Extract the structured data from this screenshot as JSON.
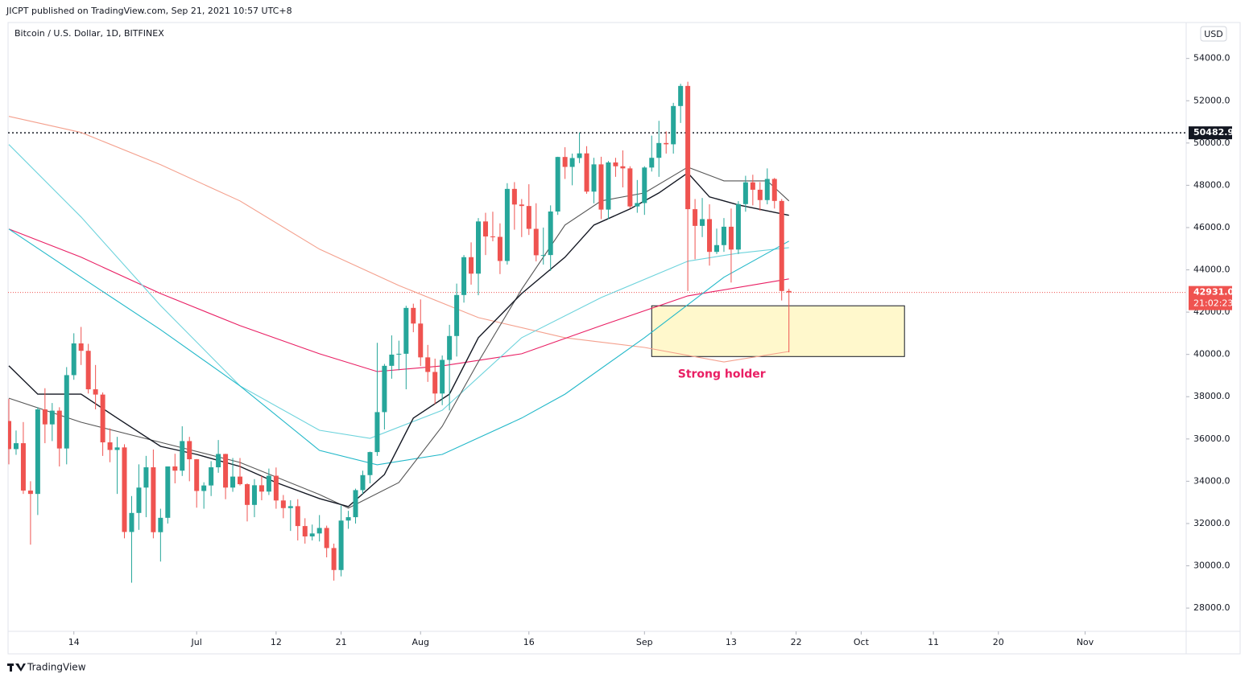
{
  "header": {
    "published": "JICPT published on TradingView.com, Sep 21, 2021 10:57 UTC+8"
  },
  "footer": {
    "brand": "TradingView"
  },
  "chart_data": {
    "type": "candlestick",
    "title": "Bitcoin / U.S. Dollar, 1D, BITFINEX",
    "currency": "USD",
    "up_color": "#26a69a",
    "down_color": "#ef5350",
    "x": [
      "2021-06-05",
      "2021-06-06",
      "2021-06-07",
      "2021-06-08",
      "2021-06-09",
      "2021-06-10",
      "2021-06-11",
      "2021-06-12",
      "2021-06-13",
      "2021-06-14",
      "2021-06-15",
      "2021-06-16",
      "2021-06-17",
      "2021-06-18",
      "2021-06-19",
      "2021-06-20",
      "2021-06-21",
      "2021-06-22",
      "2021-06-23",
      "2021-06-24",
      "2021-06-25",
      "2021-06-26",
      "2021-06-27",
      "2021-06-28",
      "2021-06-29",
      "2021-06-30",
      "2021-07-01",
      "2021-07-02",
      "2021-07-03",
      "2021-07-04",
      "2021-07-05",
      "2021-07-06",
      "2021-07-07",
      "2021-07-08",
      "2021-07-09",
      "2021-07-10",
      "2021-07-11",
      "2021-07-12",
      "2021-07-13",
      "2021-07-14",
      "2021-07-15",
      "2021-07-16",
      "2021-07-17",
      "2021-07-18",
      "2021-07-19",
      "2021-07-20",
      "2021-07-21",
      "2021-07-22",
      "2021-07-23",
      "2021-07-24",
      "2021-07-25",
      "2021-07-26",
      "2021-07-27",
      "2021-07-28",
      "2021-07-29",
      "2021-07-30",
      "2021-07-31",
      "2021-08-01",
      "2021-08-02",
      "2021-08-03",
      "2021-08-04",
      "2021-08-05",
      "2021-08-06",
      "2021-08-07",
      "2021-08-08",
      "2021-08-09",
      "2021-08-10",
      "2021-08-11",
      "2021-08-12",
      "2021-08-13",
      "2021-08-14",
      "2021-08-15",
      "2021-08-16",
      "2021-08-17",
      "2021-08-18",
      "2021-08-19",
      "2021-08-20",
      "2021-08-21",
      "2021-08-22",
      "2021-08-23",
      "2021-08-24",
      "2021-08-25",
      "2021-08-26",
      "2021-08-27",
      "2021-08-28",
      "2021-08-29",
      "2021-08-30",
      "2021-08-31",
      "2021-09-01",
      "2021-09-02",
      "2021-09-03",
      "2021-09-04",
      "2021-09-05",
      "2021-09-06",
      "2021-09-07",
      "2021-09-08",
      "2021-09-09",
      "2021-09-10",
      "2021-09-11",
      "2021-09-12",
      "2021-09-13",
      "2021-09-14",
      "2021-09-15",
      "2021-09-16",
      "2021-09-17",
      "2021-09-18",
      "2021-09-19",
      "2021-09-20",
      "2021-09-21"
    ],
    "open": [
      36850,
      35520,
      35800,
      33560,
      33400,
      37400,
      36690,
      37340,
      35550,
      39020,
      40520,
      40170,
      38350,
      38100,
      35840,
      35480,
      35600,
      31600,
      32500,
      33700,
      34660,
      31590,
      32270,
      34700,
      34500,
      35900,
      35040,
      33540,
      33800,
      34660,
      35290,
      33700,
      34220,
      33860,
      32880,
      33810,
      33510,
      34260,
      33090,
      32730,
      32820,
      31880,
      31390,
      31530,
      31790,
      30840,
      29800,
      32140,
      32300,
      33580,
      34290,
      35380,
      37270,
      39460,
      39990,
      40030,
      42200,
      41460,
      39860,
      39170,
      38150,
      39740,
      40870,
      42810,
      44600,
      43820,
      46290,
      45580,
      45560,
      44420,
      47830,
      47090,
      47020,
      45940,
      44690,
      44700,
      46760,
      49340,
      48870,
      49290,
      49510,
      47700,
      48990,
      46850,
      49080,
      48900,
      48800,
      47000,
      47160,
      48840,
      49300,
      50000,
      49940,
      51750,
      52700,
      46870,
      46080,
      46400,
      44850,
      45170,
      46040,
      44960,
      47110,
      48140,
      47790,
      47300,
      48300,
      47260,
      43000
    ],
    "high": [
      37900,
      36400,
      36800,
      34000,
      37500,
      38400,
      37700,
      37500,
      39400,
      41000,
      41300,
      40500,
      39500,
      38200,
      36500,
      36100,
      35750,
      33300,
      34800,
      35200,
      35500,
      32700,
      34700,
      35300,
      36600,
      36100,
      35050,
      33950,
      34950,
      35950,
      35300,
      35100,
      35100,
      33900,
      34100,
      34250,
      34600,
      34650,
      33350,
      33100,
      33150,
      32250,
      31950,
      32400,
      31900,
      31050,
      32850,
      32600,
      33650,
      34500,
      35400,
      40550,
      39550,
      40900,
      40650,
      42300,
      42400,
      42600,
      40450,
      39800,
      39950,
      41400,
      43350,
      44700,
      45300,
      46450,
      46700,
      46750,
      46200,
      48100,
      48150,
      47350,
      48050,
      47150,
      46000,
      47050,
      49350,
      49800,
      49500,
      50500,
      49850,
      49300,
      49350,
      49150,
      49300,
      49650,
      48900,
      48250,
      48900,
      50350,
      51050,
      50550,
      51900,
      52800,
      52900,
      47350,
      47400,
      47100,
      45950,
      46450,
      46900,
      47250,
      48450,
      48500,
      48150,
      48800,
      48350,
      47350,
      43100
    ],
    "low": [
      34800,
      35250,
      33400,
      31000,
      32400,
      35800,
      35900,
      34700,
      34800,
      38800,
      39500,
      38150,
      37400,
      35200,
      34900,
      33400,
      31300,
      29200,
      31700,
      32300,
      31300,
      30200,
      32000,
      33900,
      34250,
      34000,
      32750,
      32700,
      33300,
      34400,
      33150,
      33500,
      33800,
      32100,
      32300,
      33100,
      33350,
      32700,
      32250,
      31650,
      31200,
      31050,
      31200,
      31150,
      30400,
      29300,
      29500,
      31750,
      32000,
      33400,
      33900,
      35200,
      36450,
      38850,
      39250,
      38350,
      41050,
      39450,
      38700,
      37650,
      37600,
      37350,
      39900,
      42450,
      43300,
      42800,
      44700,
      45350,
      43800,
      44250,
      45900,
      45550,
      45650,
      44400,
      44250,
      43950,
      46600,
      48300,
      48000,
      49050,
      47600,
      47150,
      46400,
      46400,
      48400,
      47900,
      46900,
      46700,
      46600,
      48650,
      48400,
      49500,
      49500,
      50950,
      43000,
      44500,
      45550,
      44200,
      44750,
      44850,
      43400,
      44750,
      46750,
      47050,
      46800,
      47100,
      46900,
      42550,
      40100
    ],
    "close": [
      35520,
      35800,
      33560,
      33400,
      37400,
      36690,
      37340,
      35550,
      39020,
      40520,
      40170,
      38350,
      38100,
      35840,
      35480,
      35600,
      31600,
      32500,
      33700,
      34660,
      31590,
      32270,
      34700,
      34500,
      35900,
      35040,
      33540,
      33800,
      34660,
      35290,
      33700,
      34220,
      33860,
      32880,
      33810,
      33510,
      34260,
      33090,
      32730,
      32820,
      31880,
      31390,
      31530,
      31790,
      30840,
      29800,
      32140,
      32300,
      33580,
      34290,
      35380,
      37270,
      39460,
      39990,
      40030,
      42200,
      41460,
      39860,
      39170,
      38150,
      39740,
      40870,
      42810,
      44600,
      43820,
      46290,
      45580,
      45560,
      44420,
      47830,
      47090,
      47020,
      45940,
      44690,
      44700,
      46760,
      49340,
      48870,
      49290,
      49510,
      47700,
      48990,
      46850,
      49080,
      48900,
      48800,
      47000,
      47160,
      48840,
      49300,
      50000,
      49940,
      51750,
      52700,
      46870,
      46080,
      46400,
      44850,
      45170,
      46040,
      44960,
      47110,
      48140,
      47790,
      47300,
      48300,
      47260,
      43000,
      42931
    ],
    "lines": [
      {
        "color": "#f4a08d",
        "x": [
          "2021-06-05",
          "2021-06-15",
          "2021-06-26",
          "2021-07-07",
          "2021-07-18",
          "2021-07-29",
          "2021-08-09",
          "2021-08-21",
          "2021-09-01",
          "2021-09-12",
          "2021-09-21"
        ],
        "values": [
          51260,
          50500,
          48975,
          47260,
          44980,
          43260,
          41740,
          40790,
          40330,
          39640,
          40140
        ]
      },
      {
        "color": "#e91e63",
        "x": [
          "2021-06-05",
          "2021-06-15",
          "2021-06-26",
          "2021-07-07",
          "2021-07-18",
          "2021-07-26",
          "2021-08-04",
          "2021-08-15",
          "2021-08-26",
          "2021-09-07",
          "2021-09-21"
        ],
        "values": [
          45930,
          44600,
          42880,
          41360,
          40030,
          39190,
          39460,
          40030,
          41360,
          42770,
          43570
        ]
      },
      {
        "color": "#6dd3dc",
        "x": [
          "2021-06-05",
          "2021-06-15",
          "2021-06-26",
          "2021-07-07",
          "2021-07-18",
          "2021-07-25",
          "2021-08-04",
          "2021-08-15",
          "2021-08-26",
          "2021-09-07",
          "2021-09-14",
          "2021-09-21"
        ],
        "values": [
          49930,
          46500,
          42310,
          38510,
          36410,
          36030,
          37360,
          40790,
          42690,
          44410,
          44790,
          45050
        ]
      },
      {
        "color": "#22b8c9",
        "x": [
          "2021-06-05",
          "2021-06-15",
          "2021-06-26",
          "2021-07-07",
          "2021-07-18",
          "2021-07-26",
          "2021-08-04",
          "2021-08-15",
          "2021-08-21",
          "2021-09-01",
          "2021-09-12",
          "2021-09-21"
        ],
        "values": [
          45930,
          43650,
          41170,
          38510,
          35460,
          34780,
          35270,
          36990,
          38120,
          40790,
          43650,
          45360
        ]
      },
      {
        "color": "#555555",
        "x": [
          "2021-06-05",
          "2021-06-15",
          "2021-06-26",
          "2021-07-07",
          "2021-07-18",
          "2021-07-22",
          "2021-07-29",
          "2021-08-04",
          "2021-08-09",
          "2021-08-15",
          "2021-08-21",
          "2021-08-26",
          "2021-09-01",
          "2021-09-07",
          "2021-09-12",
          "2021-09-18",
          "2021-09-21"
        ],
        "values": [
          37930,
          36790,
          35840,
          34890,
          33370,
          32730,
          33940,
          36600,
          39650,
          43080,
          46120,
          47260,
          47640,
          48860,
          48210,
          48210,
          47260
        ]
      },
      {
        "color": "#131722",
        "x": [
          "2021-06-05",
          "2021-06-09",
          "2021-06-15",
          "2021-06-20",
          "2021-06-26",
          "2021-07-01",
          "2021-07-07",
          "2021-07-12",
          "2021-07-18",
          "2021-07-22",
          "2021-07-27",
          "2021-07-31",
          "2021-08-05",
          "2021-08-09",
          "2021-08-15",
          "2021-08-21",
          "2021-08-25",
          "2021-08-30",
          "2021-09-03",
          "2021-09-07",
          "2021-09-10",
          "2021-09-14",
          "2021-09-21"
        ],
        "values": [
          39460,
          38120,
          38120,
          36990,
          35650,
          35270,
          34700,
          33940,
          33180,
          32800,
          34320,
          36990,
          38120,
          40790,
          42880,
          44600,
          46120,
          46880,
          47640,
          48590,
          47450,
          47070,
          46580
        ]
      }
    ],
    "xlim": [
      "2021-06-05",
      "2021-11-15"
    ],
    "xticks": [
      {
        "value": "2021-06-14",
        "label": "14"
      },
      {
        "value": "2021-07-01",
        "label": "Jul"
      },
      {
        "value": "2021-07-12",
        "label": "12"
      },
      {
        "value": "2021-07-21",
        "label": "21"
      },
      {
        "value": "2021-08-01",
        "label": "Aug"
      },
      {
        "value": "2021-08-16",
        "label": "16"
      },
      {
        "value": "2021-09-01",
        "label": "Sep"
      },
      {
        "value": "2021-09-13",
        "label": "13"
      },
      {
        "value": "2021-09-22",
        "label": "22"
      },
      {
        "value": "2021-10-01",
        "label": "Oct"
      },
      {
        "value": "2021-10-11",
        "label": "11"
      },
      {
        "value": "2021-10-20",
        "label": "20"
      },
      {
        "value": "2021-11-01",
        "label": "Nov"
      }
    ],
    "ylim": [
      26900,
      55700
    ],
    "yticks": [
      {
        "value": 28000,
        "label": "28000.0"
      },
      {
        "value": 30000,
        "label": "30000.0"
      },
      {
        "value": 32000,
        "label": "32000.0"
      },
      {
        "value": 34000,
        "label": "34000.0"
      },
      {
        "value": 36000,
        "label": "36000.0"
      },
      {
        "value": 38000,
        "label": "38000.0"
      },
      {
        "value": 40000,
        "label": "40000.0"
      },
      {
        "value": 42000,
        "label": "42000.0"
      },
      {
        "value": 44000,
        "label": "44000.0"
      },
      {
        "value": 46000,
        "label": "46000.0"
      },
      {
        "value": 48000,
        "label": "48000.0"
      },
      {
        "value": 50000,
        "label": "50000.0"
      },
      {
        "value": 52000,
        "label": "52000.0"
      },
      {
        "value": 54000,
        "label": "54000.0"
      }
    ],
    "level": 50482.9,
    "last_price": {
      "value": 42931,
      "label": "42931.0",
      "countdown": "21:02:23"
    },
    "zone": {
      "x": [
        "2021-09-02",
        "2021-10-07"
      ],
      "y": [
        39900,
        42300
      ],
      "fill": "#fff8cc"
    },
    "annotation": {
      "text": "Strong holder",
      "color": "#e91e63"
    }
  }
}
